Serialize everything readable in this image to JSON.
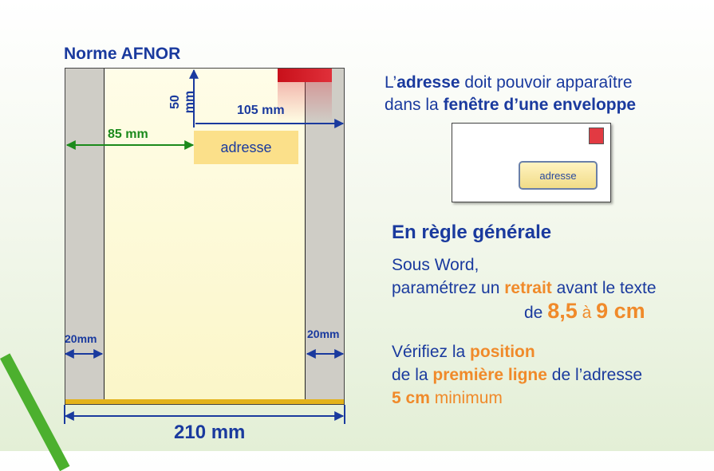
{
  "title": "Norme AFNOR",
  "diagram": {
    "label_50mm": "50 mm",
    "label_105mm": "105 mm",
    "label_85mm": "85 mm",
    "address_box": "adresse",
    "label_20mm_left": "20mm",
    "label_20mm_right": "20mm",
    "label_210mm": "210 mm"
  },
  "intro": {
    "l1_a": "L’",
    "l1_b": "adresse",
    "l1_c": " doit pouvoir apparaître",
    "l2_a": "dans la ",
    "l2_b": "fenêtre d’une enveloppe"
  },
  "envelope": {
    "address": "adresse"
  },
  "general": {
    "heading": "En règle générale",
    "p1_l1": "Sous Word,",
    "p1_l2_a": "paramétrez un ",
    "p1_l2_b": "retrait",
    "p1_l2_c": " avant le texte",
    "p1_l3_a": "de ",
    "p1_l3_b": "8,5",
    "p1_l3_c": " à ",
    "p1_l3_d": "9 cm",
    "p2_l1_a": "Vérifiez la ",
    "p2_l1_b": "position",
    "p2_l2_a": "de la ",
    "p2_l2_b": "première ligne",
    "p2_l2_c": " de l’adresse",
    "p2_l3_a": "5 cm",
    "p2_l3_b": " minimum"
  },
  "colors": {
    "blue": "#1a3a9e",
    "green": "#1b8a1b",
    "orange": "#f08a2a",
    "stamp_red": "#c8101a"
  }
}
